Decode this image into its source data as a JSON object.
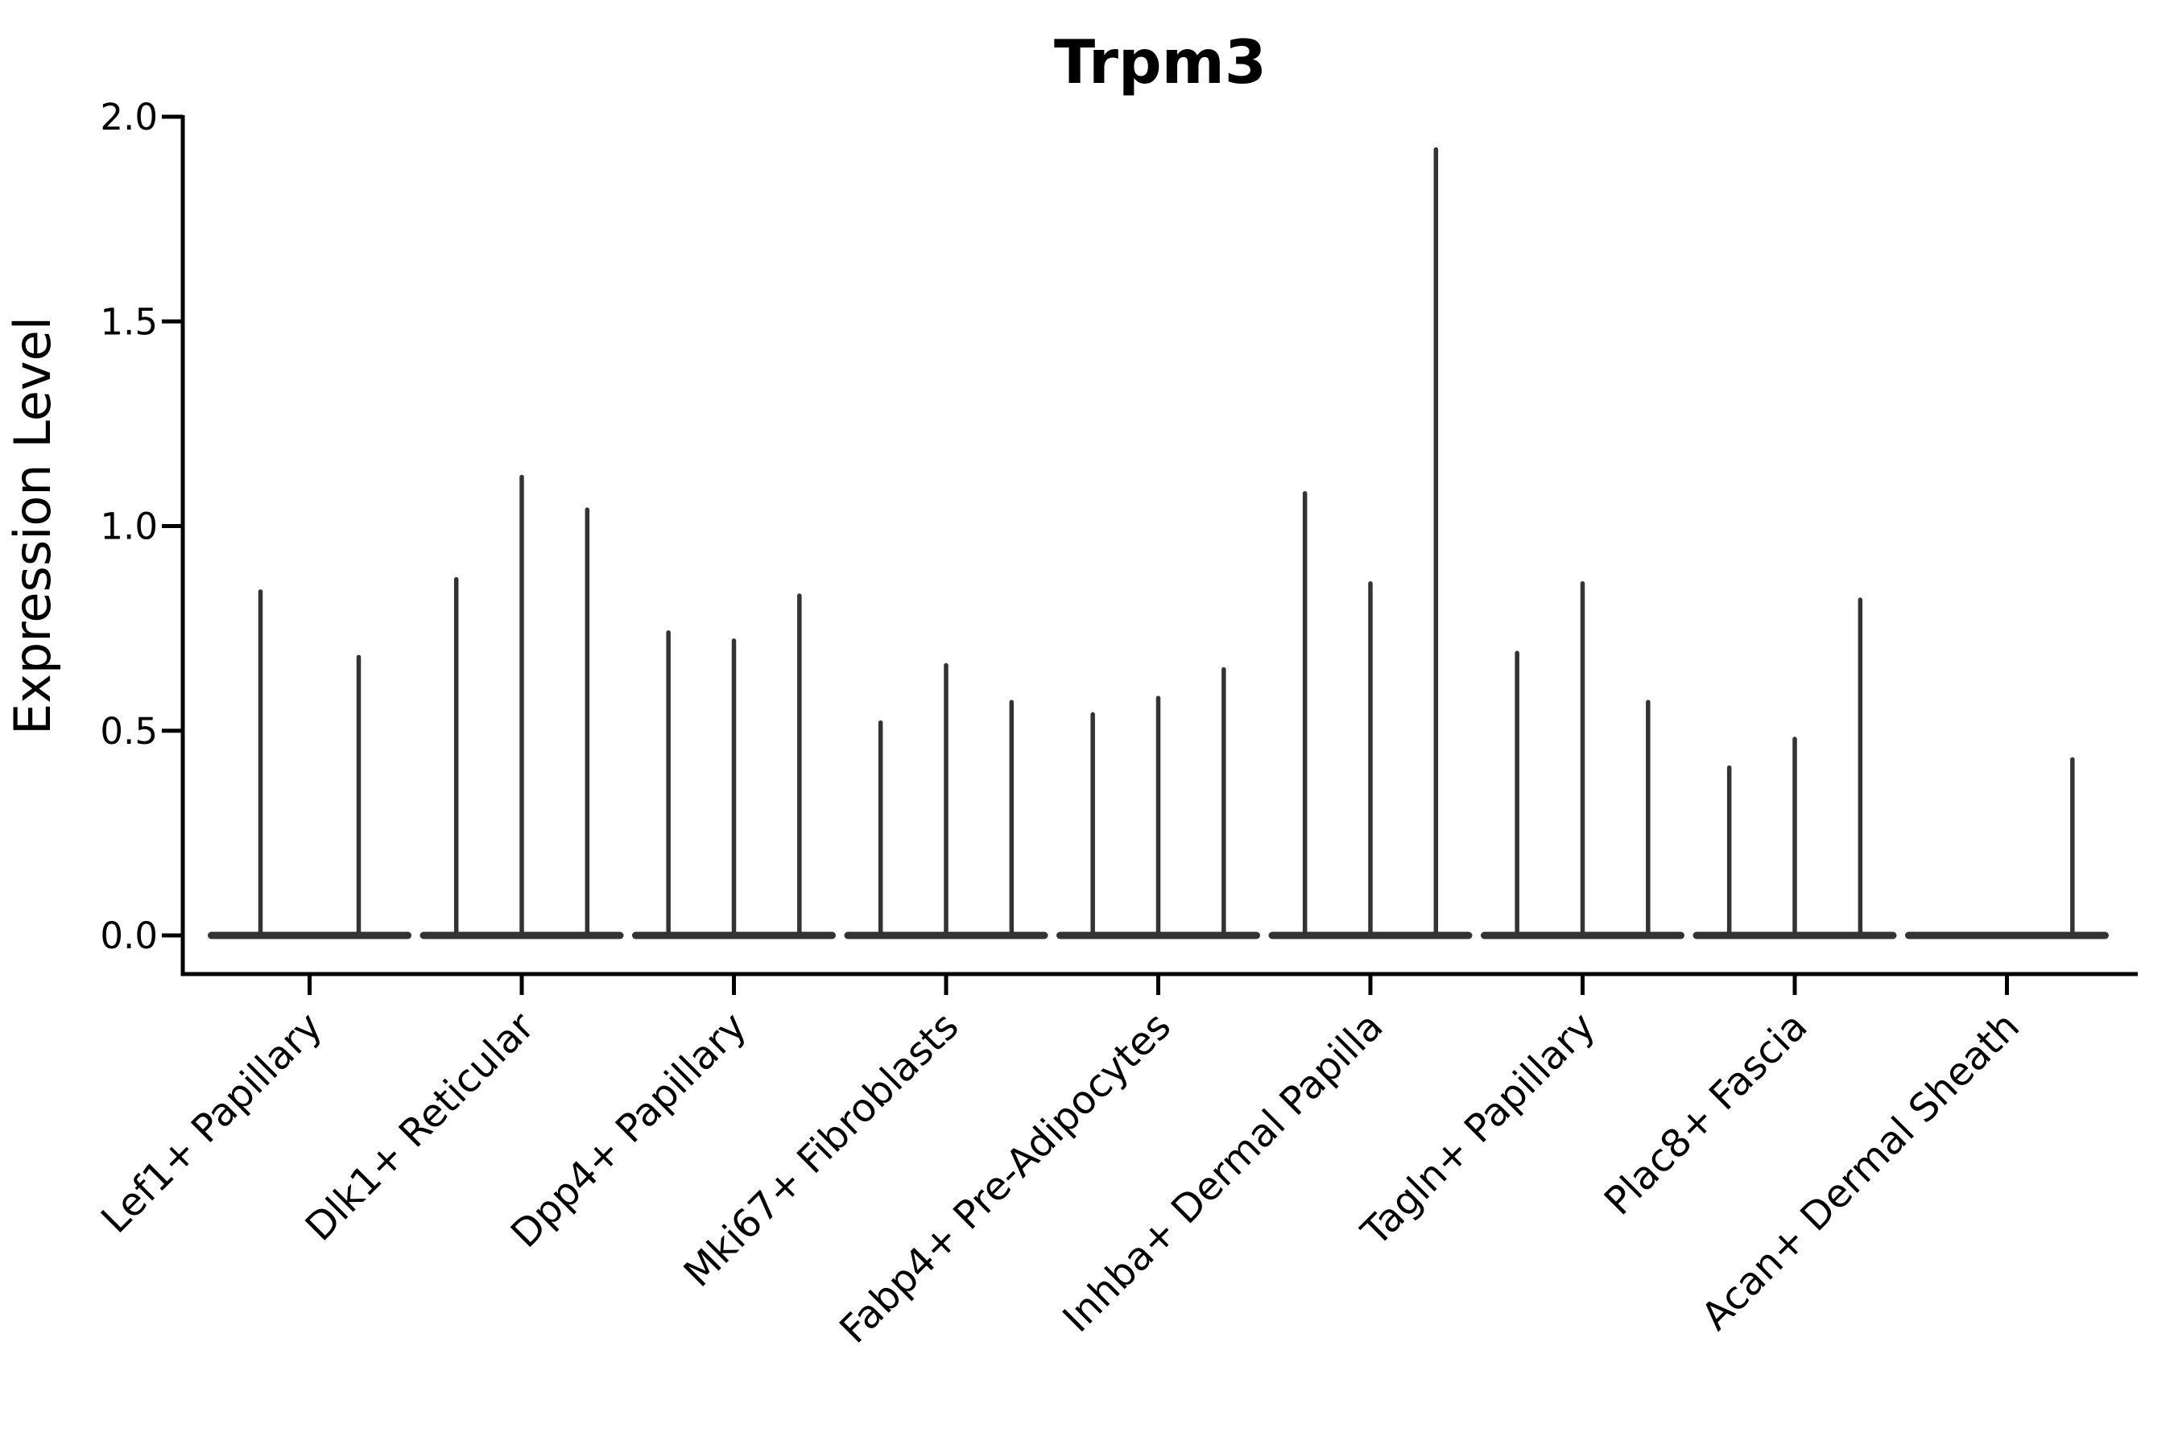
{
  "figure": {
    "title": "Trpm3",
    "ylabel": "Expression Level"
  },
  "chart_data": {
    "type": "violin",
    "title": "Trpm3",
    "xlabel": "",
    "ylabel": "Expression Level",
    "ylim": [
      0.0,
      2.0
    ],
    "yticks": [
      0.0,
      0.5,
      1.0,
      1.5,
      2.0
    ],
    "ytick_labels": [
      "0.0",
      "0.5",
      "1.0",
      "1.5",
      "2.0"
    ],
    "grid": false,
    "legend": "none",
    "categories": [
      "Lef1+ Papillary",
      "Dlk1+ Reticular",
      "Dpp4+ Papillary",
      "Mki67+ Fibroblasts",
      "Fabp4+ Pre-Adipocytes",
      "Inhba+ Dermal Papilla",
      "Tagln+ Papillary",
      "Plac8+ Fascia",
      "Acan+ Dermal Sheath"
    ],
    "series": [
      {
        "category": "Lef1+ Papillary",
        "violin_max_values": [
          0.84,
          0.68
        ]
      },
      {
        "category": "Dlk1+ Reticular",
        "violin_max_values": [
          0.87,
          1.12,
          1.04
        ]
      },
      {
        "category": "Dpp4+ Papillary",
        "violin_max_values": [
          0.74,
          0.72,
          0.83
        ]
      },
      {
        "category": "Mki67+ Fibroblasts",
        "violin_max_values": [
          0.52,
          0.66,
          0.57
        ]
      },
      {
        "category": "Fabp4+ Pre-Adipocytes",
        "violin_max_values": [
          0.54,
          0.58,
          0.65
        ]
      },
      {
        "category": "Inhba+ Dermal Papilla",
        "violin_max_values": [
          1.08,
          0.86,
          1.92
        ]
      },
      {
        "category": "Tagln+ Papillary",
        "violin_max_values": [
          0.69,
          0.86,
          0.57
        ]
      },
      {
        "category": "Plac8+ Fascia",
        "violin_max_values": [
          0.41,
          0.48,
          0.82
        ]
      },
      {
        "category": "Acan+ Dermal Sheath",
        "violin_max_values": [
          0.0,
          0.0,
          0.43
        ]
      }
    ],
    "violin_shape_note": "Each violin is mass-at-zero: a wide flat base lying on the 0.0 line with a single thin vertical spike rising to the violin's maximum expression value."
  },
  "colors": {
    "violin": "#333333",
    "axis": "#000000",
    "text": "#000000",
    "background": "#ffffff"
  }
}
